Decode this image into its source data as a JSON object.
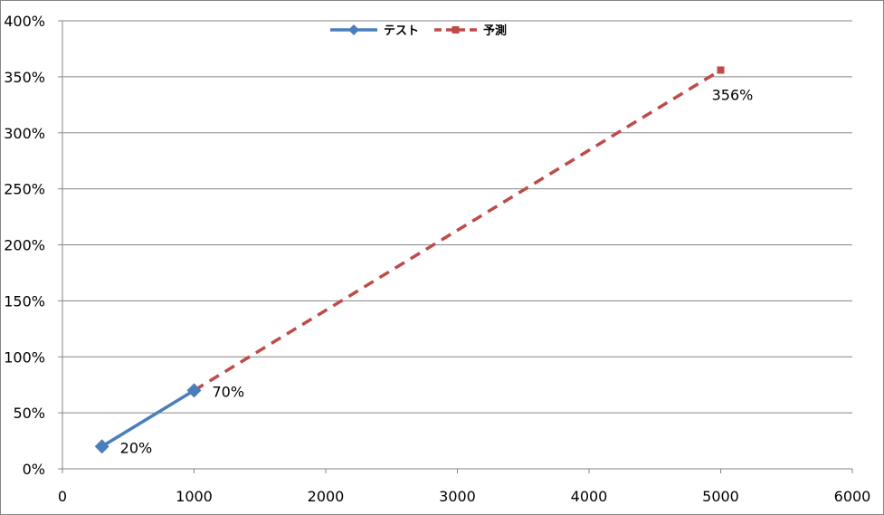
{
  "chart_data": {
    "type": "line",
    "title": "",
    "xlabel": "",
    "ylabel": "",
    "xlim": [
      0,
      6000
    ],
    "ylim": [
      0,
      4
    ],
    "x_ticks": [
      "0",
      "1000",
      "2000",
      "3000",
      "4000",
      "5000",
      "6000"
    ],
    "y_ticks": [
      "0%",
      "50%",
      "100%",
      "150%",
      "200%",
      "250%",
      "300%",
      "350%",
      "400%"
    ],
    "grid": "horizontal",
    "legend_position": "top",
    "series": [
      {
        "name": "テスト",
        "color": "#4A7EBB",
        "style": "solid",
        "marker": "diamond",
        "points": [
          {
            "x": 300,
            "y": 0.2,
            "label": "20%"
          },
          {
            "x": 1000,
            "y": 0.7,
            "label": "70%"
          }
        ]
      },
      {
        "name": "予測",
        "color": "#BE4B48",
        "style": "dashed",
        "marker": "square",
        "points": [
          {
            "x": 1000,
            "y": 0.7,
            "label": ""
          },
          {
            "x": 5000,
            "y": 3.56,
            "label": "356%"
          }
        ]
      }
    ]
  }
}
